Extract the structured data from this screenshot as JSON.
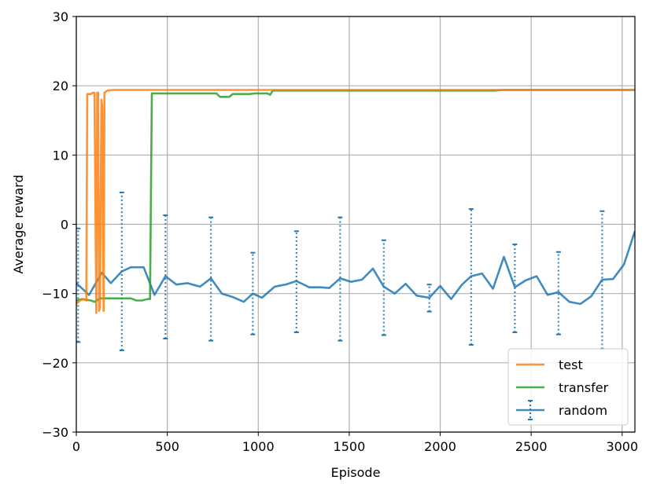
{
  "chart_data": {
    "type": "line",
    "title": "",
    "xlabel": "Episode",
    "ylabel": "Average reward",
    "xlim": [
      0,
      3070
    ],
    "ylim": [
      -30,
      30
    ],
    "xticks": [
      0,
      500,
      1000,
      1500,
      2000,
      2500,
      3000
    ],
    "yticks": [
      -30,
      -20,
      -10,
      0,
      10,
      20,
      30
    ],
    "xtick_labels": [
      "0",
      "500",
      "1000",
      "1500",
      "2000",
      "2500",
      "3000"
    ],
    "ytick_labels": [
      "−30",
      "−20",
      "−10",
      "0",
      "10",
      "20",
      "30"
    ],
    "grid": true,
    "legend_position": "lower-right",
    "series": [
      {
        "name": "test",
        "color": "#ff7f0e",
        "points": [
          [
            0,
            -11.5
          ],
          [
            20,
            -11.0
          ],
          [
            40,
            -10.8
          ],
          [
            55,
            -11.0
          ],
          [
            60,
            18.8
          ],
          [
            80,
            18.8
          ],
          [
            90,
            19.0
          ],
          [
            100,
            19.0
          ],
          [
            110,
            -12.8
          ],
          [
            115,
            19.0
          ],
          [
            120,
            19.0
          ],
          [
            125,
            -12.5
          ],
          [
            130,
            -12.0
          ],
          [
            138,
            18.0
          ],
          [
            142,
            17.0
          ],
          [
            150,
            -12.5
          ],
          [
            155,
            19.0
          ],
          [
            170,
            19.3
          ],
          [
            200,
            19.4
          ],
          [
            400,
            19.4
          ],
          [
            1000,
            19.4
          ],
          [
            1500,
            19.4
          ],
          [
            2000,
            19.4
          ],
          [
            2500,
            19.4
          ],
          [
            3070,
            19.4
          ]
        ]
      },
      {
        "name": "transfer",
        "color": "#2ca02c",
        "points": [
          [
            0,
            -11.0
          ],
          [
            30,
            -10.8
          ],
          [
            80,
            -11.0
          ],
          [
            100,
            -11.2
          ],
          [
            130,
            -10.7
          ],
          [
            200,
            -10.7
          ],
          [
            300,
            -10.7
          ],
          [
            330,
            -11.0
          ],
          [
            360,
            -11.0
          ],
          [
            390,
            -10.8
          ],
          [
            405,
            -10.8
          ],
          [
            415,
            18.9
          ],
          [
            500,
            18.9
          ],
          [
            600,
            18.9
          ],
          [
            700,
            18.9
          ],
          [
            770,
            18.9
          ],
          [
            790,
            18.4
          ],
          [
            840,
            18.4
          ],
          [
            860,
            18.8
          ],
          [
            950,
            18.8
          ],
          [
            980,
            18.9
          ],
          [
            1050,
            18.9
          ],
          [
            1065,
            18.7
          ],
          [
            1080,
            19.3
          ],
          [
            1500,
            19.3
          ],
          [
            2000,
            19.3
          ],
          [
            2300,
            19.3
          ],
          [
            2340,
            19.4
          ],
          [
            2500,
            19.4
          ],
          [
            3070,
            19.4
          ]
        ]
      },
      {
        "name": "random",
        "color": "#1f77b4",
        "x": [
          0,
          70,
          140,
          190,
          250,
          300,
          370,
          430,
          490,
          550,
          610,
          680,
          740,
          800,
          860,
          920,
          970,
          1020,
          1090,
          1150,
          1210,
          1280,
          1340,
          1390,
          1450,
          1510,
          1570,
          1630,
          1690,
          1750,
          1810,
          1870,
          1940,
          2000,
          2060,
          2120,
          2170,
          2230,
          2290,
          2350,
          2410,
          2470,
          2530,
          2590,
          2650,
          2710,
          2770,
          2830,
          2890,
          2950,
          3010,
          3070
        ],
        "y": [
          -8.5,
          -10.2,
          -7.0,
          -8.5,
          -6.8,
          -6.2,
          -6.2,
          -10.2,
          -7.5,
          -8.7,
          -8.5,
          -9.0,
          -7.8,
          -10.0,
          -10.5,
          -11.2,
          -10.0,
          -10.6,
          -9.0,
          -8.7,
          -8.2,
          -9.1,
          -9.1,
          -9.2,
          -7.8,
          -8.3,
          -8.0,
          -6.4,
          -9.0,
          -10.0,
          -8.6,
          -10.3,
          -10.6,
          -8.9,
          -10.8,
          -8.7,
          -7.5,
          -7.1,
          -9.3,
          -4.7,
          -9.1,
          -8.1,
          -7.5,
          -10.2,
          -9.8,
          -11.2,
          -11.5,
          -10.4,
          -8.0,
          -7.9,
          -5.8,
          -1.0
        ],
        "error_bars": [
          {
            "x": 10,
            "low": -17.0,
            "high": -0.6
          },
          {
            "x": 250,
            "low": -18.2,
            "high": 4.6
          },
          {
            "x": 490,
            "low": -16.5,
            "high": 1.3
          },
          {
            "x": 740,
            "low": -16.8,
            "high": 1.0
          },
          {
            "x": 970,
            "low": -15.9,
            "high": -4.1
          },
          {
            "x": 1210,
            "low": -15.6,
            "high": -1.0
          },
          {
            "x": 1450,
            "low": -16.8,
            "high": 1.0
          },
          {
            "x": 1690,
            "low": -16.0,
            "high": -2.3
          },
          {
            "x": 1940,
            "low": -12.6,
            "high": -8.7
          },
          {
            "x": 2170,
            "low": -17.4,
            "high": 2.2
          },
          {
            "x": 2410,
            "low": -15.6,
            "high": -2.9
          },
          {
            "x": 2650,
            "low": -15.9,
            "high": -4.0
          },
          {
            "x": 2890,
            "low": -18.0,
            "high": 1.9
          }
        ]
      }
    ]
  }
}
